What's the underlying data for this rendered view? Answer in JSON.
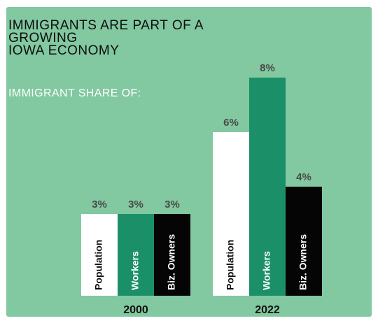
{
  "card": {
    "title_lines": [
      "IMMIGRANTS ARE PART OF A",
      "GROWING",
      "IOWA ECONOMY"
    ],
    "subtitle": "IMMIGRANT SHARE OF:"
  },
  "colors": {
    "background": "#82c8a0",
    "population": "#ffffff",
    "workers": "#1b8f68",
    "biz_owners": "#050505",
    "value_label": "#4a4a4a",
    "year_label": "#111111"
  },
  "chart_data": {
    "type": "bar",
    "title": "IMMIGRANTS ARE PART OF A GROWING IOWA ECONOMY",
    "subtitle": "IMMIGRANT SHARE OF:",
    "categories": [
      "2000",
      "2022"
    ],
    "series": [
      {
        "name": "Population",
        "values": [
          3,
          6
        ],
        "labels": [
          "3%",
          "6%"
        ]
      },
      {
        "name": "Workers",
        "values": [
          3,
          8
        ],
        "labels": [
          "3%",
          "8%"
        ]
      },
      {
        "name": "Biz. Owners",
        "values": [
          3,
          4
        ],
        "labels": [
          "3%",
          "4%"
        ]
      }
    ],
    "xlabel": "",
    "ylabel": "",
    "ylim": [
      0,
      8
    ],
    "grid": false,
    "legend": "none (series names written inside bars)"
  }
}
